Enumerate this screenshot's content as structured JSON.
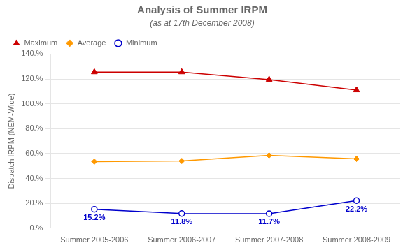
{
  "chart_data": {
    "type": "line",
    "title": "Analysis of Summer IRPM",
    "subtitle": "(as at 17th December 2008)",
    "ylabel": "Dispatch IRPM (NEM-Wide)",
    "categories": [
      "Summer 2005-2006",
      "Summer 2006-2007",
      "Summer 2007-2008",
      "Summer 2008-2009"
    ],
    "series": [
      {
        "name": "Maximum",
        "color": "#cc0000",
        "marker": "triangle",
        "values": [
          1.255,
          1.255,
          1.195,
          1.11
        ]
      },
      {
        "name": "Average",
        "color": "#ff9900",
        "marker": "diamond",
        "values": [
          0.535,
          0.54,
          0.585,
          0.557
        ]
      },
      {
        "name": "Minimum",
        "color": "#0000cc",
        "marker": "circle_open",
        "values": [
          0.152,
          0.118,
          0.117,
          0.222
        ],
        "value_labels": [
          "15.2%",
          "11.8%",
          "11.7%",
          "22.2%"
        ]
      }
    ],
    "ylim": [
      0,
      1.4
    ],
    "yticks": [
      {
        "value": 0.0,
        "label": "0.%"
      },
      {
        "value": 0.2,
        "label": "20.%"
      },
      {
        "value": 0.4,
        "label": "40.%"
      },
      {
        "value": 0.6,
        "label": "60.%"
      },
      {
        "value": 0.8,
        "label": "80.%"
      },
      {
        "value": 1.0,
        "label": "100.%"
      },
      {
        "value": 1.2,
        "label": "120.%"
      },
      {
        "value": 1.4,
        "label": "140.%"
      }
    ],
    "grid": true,
    "legend": "upper left"
  }
}
